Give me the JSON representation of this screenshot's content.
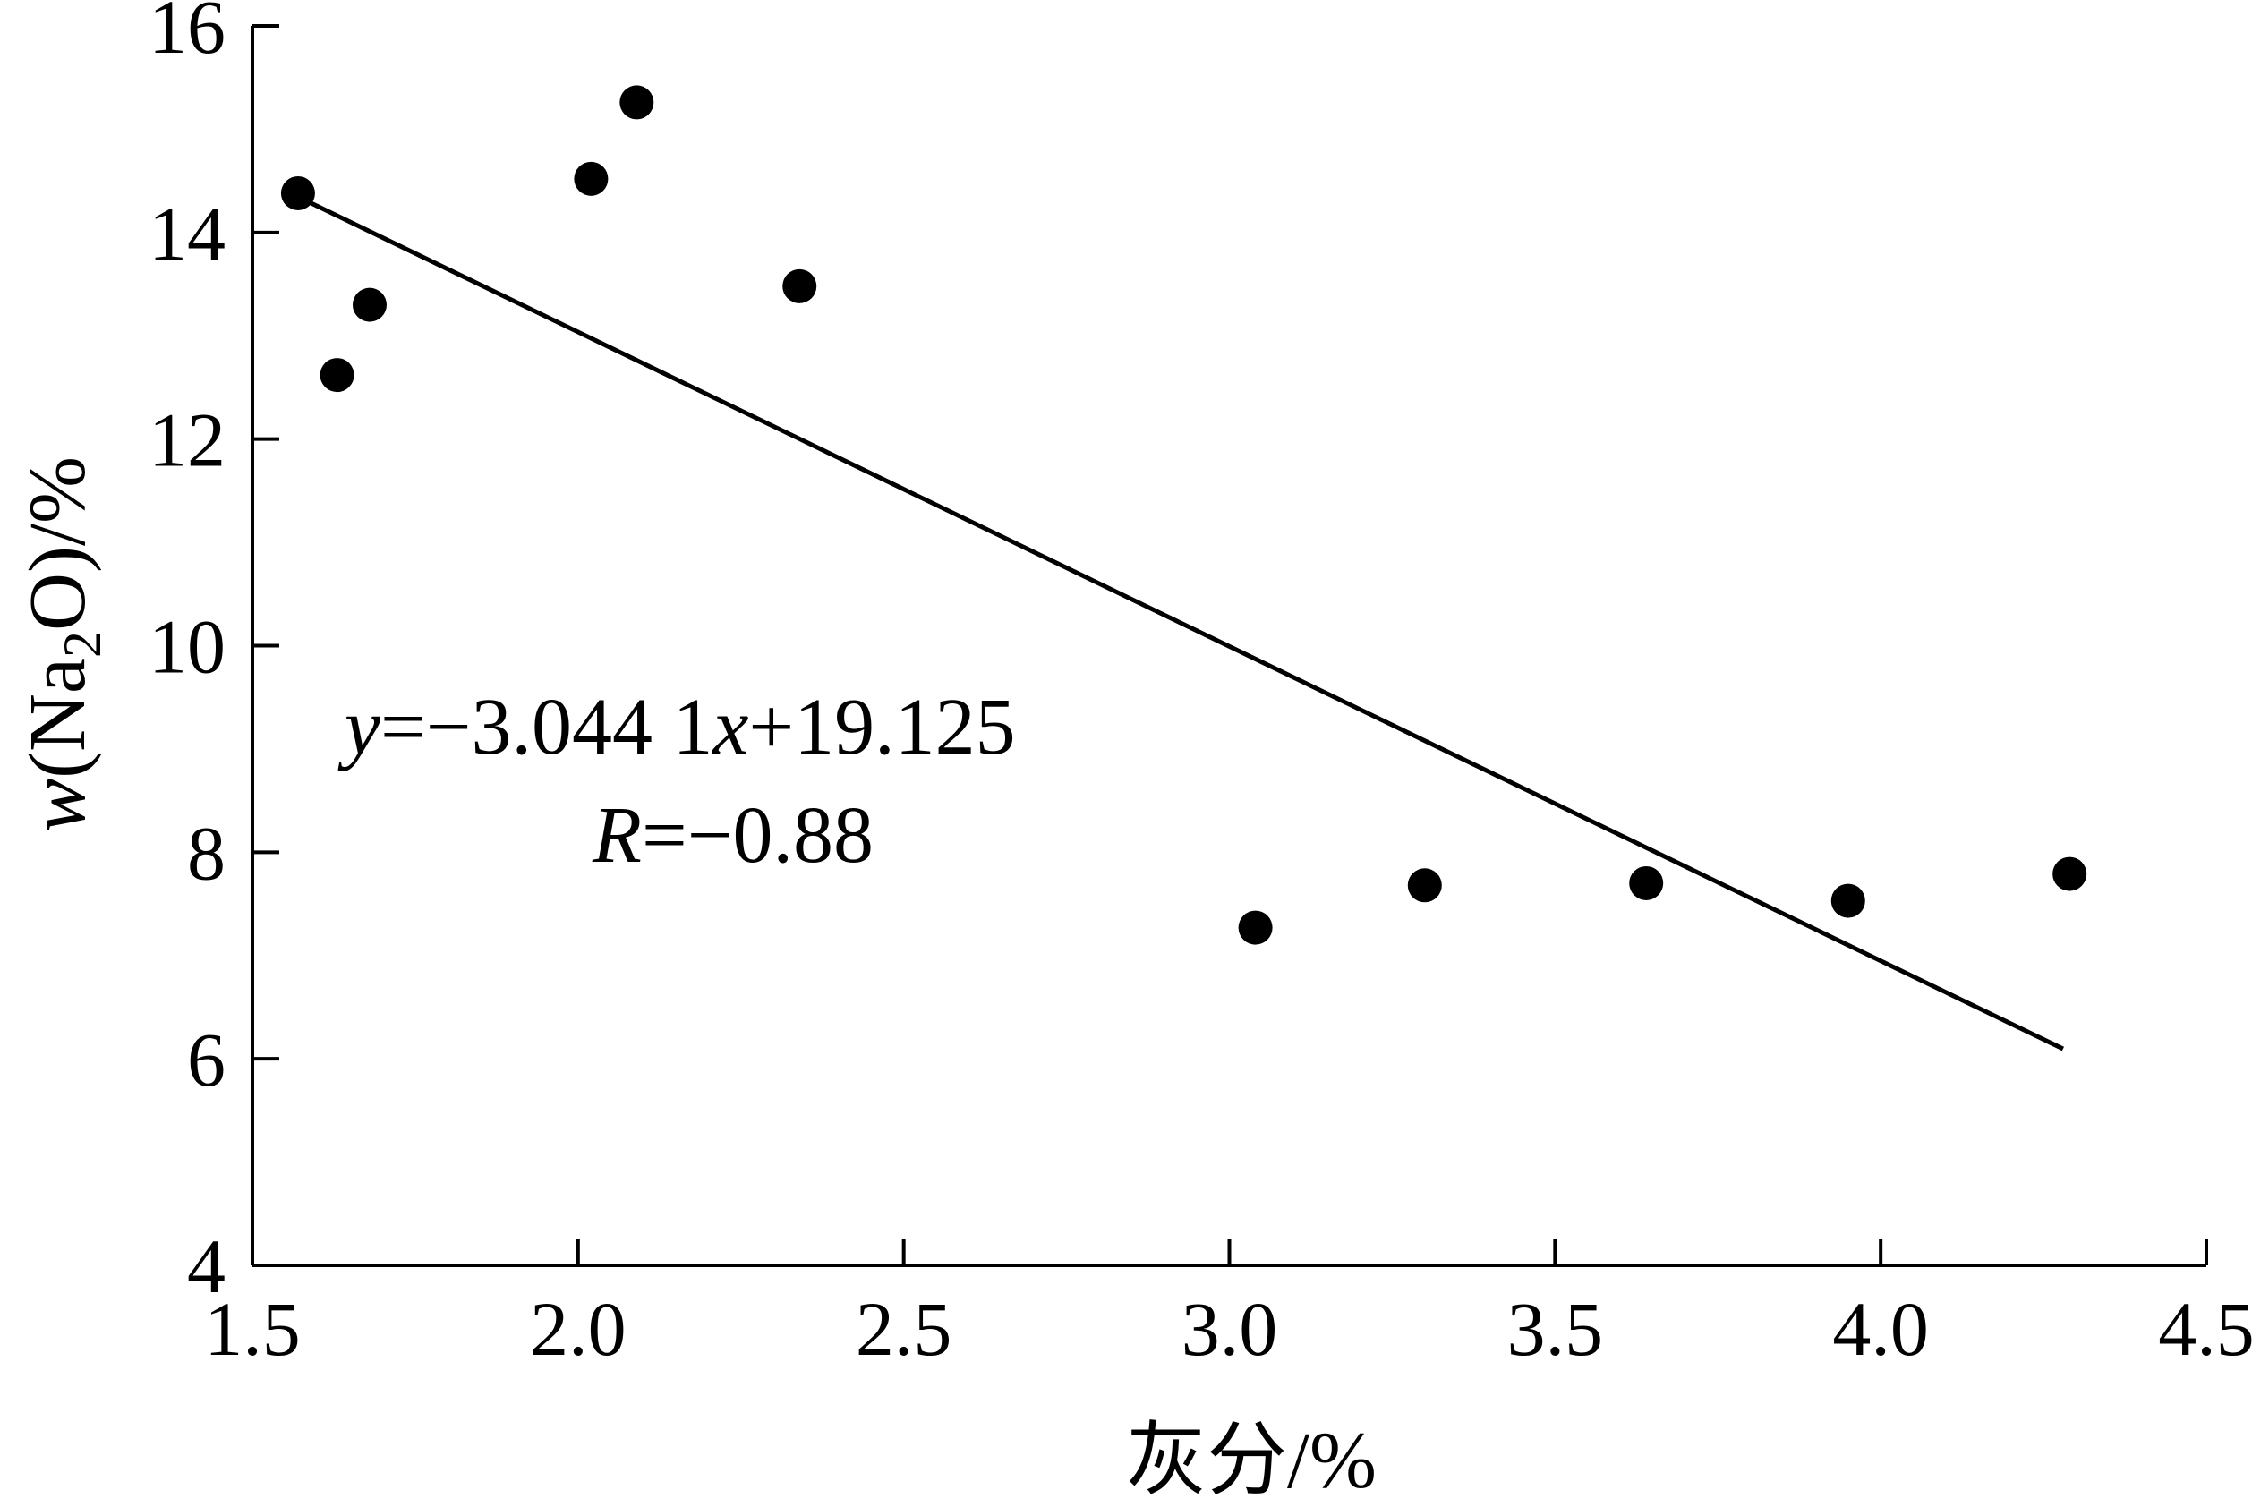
{
  "chart_data": {
    "type": "scatter",
    "title": "",
    "xlabel": "灰分/%",
    "ylabel": {
      "prefix": "w",
      "open": "(Na",
      "sub": "2",
      "close": "O)/%"
    },
    "xlim": [
      1.5,
      4.5
    ],
    "ylim": [
      4,
      16
    ],
    "x_ticks": [
      1.5,
      2.0,
      2.5,
      3.0,
      3.5,
      4.0,
      4.5
    ],
    "x_tick_labels": [
      "1.5",
      "2.0",
      "2.5",
      "3.0",
      "3.5",
      "4.0",
      "4.5"
    ],
    "y_ticks": [
      4,
      6,
      8,
      10,
      12,
      14,
      16
    ],
    "y_tick_labels": [
      "4",
      "6",
      "8",
      "10",
      "12",
      "14",
      "16"
    ],
    "grid": false,
    "legend": "none",
    "points": [
      {
        "x": 1.57,
        "y": 14.38
      },
      {
        "x": 1.63,
        "y": 12.62
      },
      {
        "x": 1.68,
        "y": 13.3
      },
      {
        "x": 2.02,
        "y": 14.52
      },
      {
        "x": 2.09,
        "y": 15.26
      },
      {
        "x": 2.34,
        "y": 13.48
      },
      {
        "x": 3.04,
        "y": 7.27
      },
      {
        "x": 3.3,
        "y": 7.68
      },
      {
        "x": 3.64,
        "y": 7.7
      },
      {
        "x": 3.95,
        "y": 7.53
      },
      {
        "x": 4.29,
        "y": 7.79
      }
    ],
    "fit_line": {
      "slope": -3.0441,
      "intercept": 19.125,
      "x_range": [
        1.57,
        4.28
      ]
    },
    "annotations": {
      "equation": {
        "var_y": "y",
        "part1": "=−3.044 1",
        "var_x": "x",
        "part2": "+19.125"
      },
      "r_value": {
        "var_r": "R",
        "part1": "=−0.88"
      }
    },
    "marker_color": "#000000",
    "line_color": "#000000"
  }
}
